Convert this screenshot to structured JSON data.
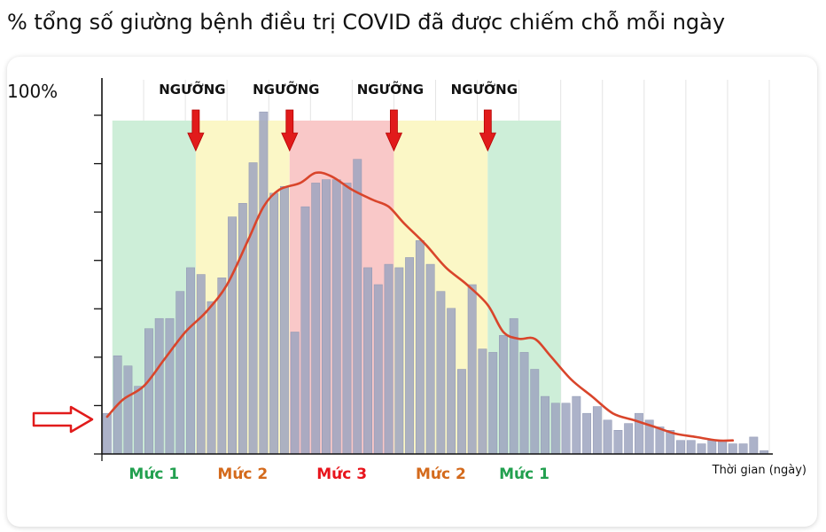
{
  "title": "% tổng số giường bệnh điều trị COVID đã được chiếm chỗ mỗi ngày",
  "chart_data": {
    "type": "bar",
    "ylabel_top": "100%",
    "xlabel": "Thời gian (ngày)",
    "ylim": [
      0,
      100
    ],
    "threshold_label": "NGƯỠNG",
    "levels": [
      {
        "label": "Mức 1",
        "start": 1,
        "end": 9,
        "color": "#cdeed8",
        "text_color": "#22a04f"
      },
      {
        "label": "Mức 2",
        "start": 9,
        "end": 18,
        "color": "#fbf7c6",
        "text_color": "#d46a1c"
      },
      {
        "label": "Mức 3",
        "start": 18,
        "end": 28,
        "color": "#f9c8c8",
        "text_color": "#e8141c"
      },
      {
        "label": "Mức 2",
        "start": 28,
        "end": 37,
        "color": "#fbf7c6",
        "text_color": "#d46a1c"
      },
      {
        "label": "Mức 1",
        "start": 37,
        "end": 44,
        "color": "#cdeed8",
        "text_color": "#22a04f"
      }
    ],
    "thresholds": [
      9,
      18,
      28,
      37
    ],
    "bars": [
      12,
      29,
      26,
      20,
      37,
      40,
      40,
      48,
      55,
      53,
      45,
      52,
      70,
      74,
      86,
      101,
      77,
      79,
      36,
      73,
      80,
      81,
      81,
      80,
      87,
      55,
      50,
      56,
      55,
      58,
      63,
      56,
      48,
      43,
      25,
      50,
      31,
      30,
      35,
      40,
      30,
      25,
      17,
      15,
      15,
      17,
      12,
      14,
      10,
      7,
      9,
      12,
      10,
      8,
      7,
      4,
      4,
      3,
      4,
      4,
      3,
      3,
      5,
      1
    ],
    "trend": [
      [
        0.5,
        11
      ],
      [
        2,
        16
      ],
      [
        4,
        20
      ],
      [
        6,
        28
      ],
      [
        8,
        36
      ],
      [
        10,
        42
      ],
      [
        12,
        50
      ],
      [
        14,
        63
      ],
      [
        15.5,
        73
      ],
      [
        17,
        78
      ],
      [
        19,
        80
      ],
      [
        20.5,
        83
      ],
      [
        22,
        82
      ],
      [
        24,
        78
      ],
      [
        26,
        75
      ],
      [
        27.5,
        73
      ],
      [
        29,
        68
      ],
      [
        31,
        62
      ],
      [
        33,
        55
      ],
      [
        35,
        50
      ],
      [
        37,
        44
      ],
      [
        38.5,
        36
      ],
      [
        40,
        34
      ],
      [
        41.5,
        34
      ],
      [
        43,
        29
      ],
      [
        45,
        22
      ],
      [
        47,
        17
      ],
      [
        49,
        12
      ],
      [
        51,
        10
      ],
      [
        53,
        8
      ],
      [
        55,
        6
      ],
      [
        57,
        5
      ],
      [
        59,
        4
      ],
      [
        60.5,
        4
      ]
    ],
    "colors": {
      "bar": "#9ea5bf",
      "bar_stroke": "#8f96b2",
      "trend": "#d9452b",
      "arrow": "#e11b1b",
      "grid": "#e4e4e4"
    }
  }
}
